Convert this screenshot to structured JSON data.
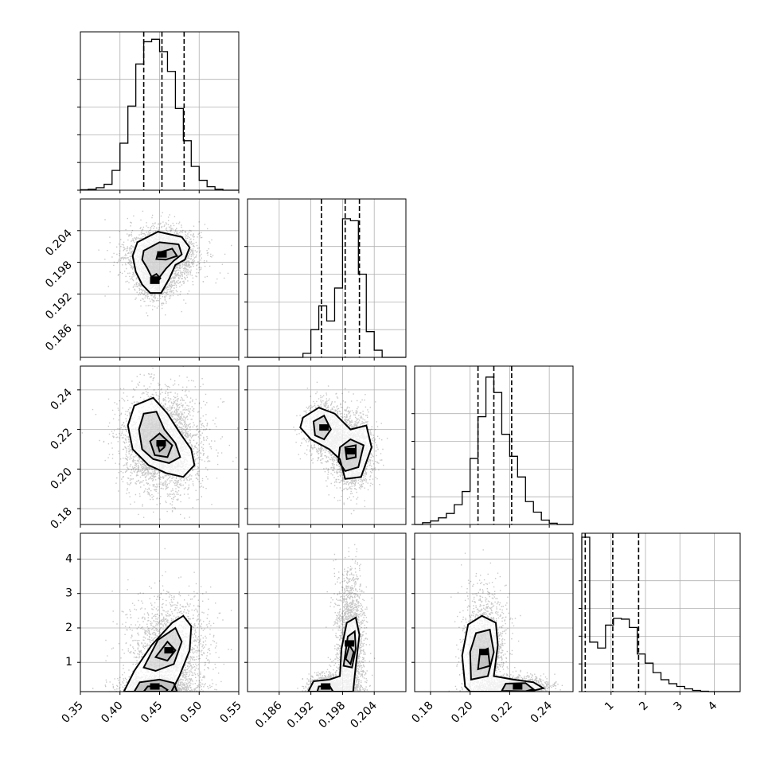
{
  "chart_data": {
    "type": "corner",
    "n_params": 4,
    "grid": true,
    "colors": {
      "line": "#000000",
      "grid": "#b0b0b0",
      "scatter": "#000000"
    },
    "axes": [
      {
        "range": [
          0.35,
          0.55
        ],
        "ticks": [
          0.35,
          0.4,
          0.45,
          0.5,
          0.55
        ],
        "labels": [
          "0.35",
          "0.40",
          "0.45",
          "0.50",
          "0.55"
        ]
      },
      {
        "range": [
          0.18,
          0.21
        ],
        "ticks": [
          0.186,
          0.192,
          0.198,
          0.204
        ],
        "labels": [
          "0.186",
          "0.192",
          "0.198",
          "0.204"
        ]
      },
      {
        "range": [
          0.172,
          0.252
        ],
        "ticks": [
          0.18,
          0.2,
          0.22,
          0.24
        ],
        "labels": [
          "0.18",
          "0.20",
          "0.22",
          "0.24"
        ]
      },
      {
        "range": [
          0.15,
          4.75
        ],
        "ticks": [
          1,
          2,
          3,
          4
        ],
        "labels": [
          "1",
          "2",
          "3",
          "4"
        ]
      }
    ],
    "histograms": [
      {
        "param": 0,
        "edges": [
          0.35,
          0.36,
          0.37,
          0.38,
          0.39,
          0.4,
          0.41,
          0.42,
          0.43,
          0.44,
          0.45,
          0.46,
          0.47,
          0.48,
          0.49,
          0.5,
          0.51,
          0.52,
          0.53,
          0.54,
          0.55
        ],
        "counts": [
          1,
          2,
          5,
          12,
          40,
          95,
          170,
          255,
          300,
          305,
          280,
          240,
          165,
          100,
          48,
          20,
          7,
          2,
          0,
          0
        ],
        "quantiles": [
          0.43,
          0.453,
          0.481
        ],
        "max": 320
      },
      {
        "param": 1,
        "edges": [
          0.18,
          0.1815,
          0.183,
          0.1845,
          0.186,
          0.1875,
          0.189,
          0.1905,
          0.192,
          0.1935,
          0.195,
          0.1965,
          0.198,
          0.1995,
          0.201,
          0.2025,
          0.204,
          0.2055,
          0.207,
          0.2085,
          0.21
        ],
        "counts": [
          0,
          0,
          0,
          0,
          0,
          0,
          0,
          10,
          70,
          130,
          92,
          175,
          350,
          345,
          210,
          65,
          18,
          0,
          0,
          0
        ],
        "quantiles": [
          0.194,
          0.1985,
          0.2012
        ],
        "max": 400
      },
      {
        "param": 2,
        "edges": [
          0.172,
          0.176,
          0.18,
          0.184,
          0.188,
          0.192,
          0.196,
          0.2,
          0.204,
          0.208,
          0.212,
          0.216,
          0.22,
          0.224,
          0.228,
          0.232,
          0.236,
          0.24,
          0.244,
          0.248,
          0.252
        ],
        "counts": [
          0,
          4,
          8,
          15,
          25,
          45,
          75,
          150,
          245,
          335,
          300,
          205,
          155,
          108,
          52,
          28,
          10,
          3,
          0,
          0
        ],
        "quantiles": [
          0.204,
          0.212,
          0.221
        ],
        "max": 360
      },
      {
        "param": 3,
        "edges": [
          0.15,
          0.38,
          0.61,
          0.84,
          1.07,
          1.3,
          1.53,
          1.76,
          1.99,
          2.22,
          2.45,
          2.68,
          2.91,
          3.14,
          3.37,
          3.6,
          3.83,
          4.06,
          4.29,
          4.52,
          4.75
        ],
        "counts": [
          390,
          125,
          110,
          168,
          185,
          183,
          162,
          95,
          72,
          48,
          30,
          20,
          13,
          7,
          3,
          1,
          0,
          0,
          0,
          0
        ],
        "quantiles": [
          0.25,
          1.05,
          1.8
        ],
        "max": 400
      }
    ],
    "pairs": [
      {
        "x": 0,
        "y": 1,
        "modes": [
          {
            "cx": 0.453,
            "cy": 0.1995,
            "sx": 0.02,
            "sy": 0.0022,
            "w": 0.75
          },
          {
            "cx": 0.444,
            "cy": 0.1945,
            "sx": 0.012,
            "sy": 0.0016,
            "w": 0.25
          }
        ],
        "contours": [
          [
            [
              0.422,
              0.2018
            ],
            [
              0.448,
              0.2038
            ],
            [
              0.478,
              0.2028
            ],
            [
              0.488,
              0.2008
            ],
            [
              0.482,
              0.1985
            ],
            [
              0.47,
              0.1975
            ],
            [
              0.462,
              0.1948
            ],
            [
              0.452,
              0.1922
            ],
            [
              0.438,
              0.1922
            ],
            [
              0.428,
              0.1938
            ],
            [
              0.42,
              0.1962
            ],
            [
              0.416,
              0.1992
            ]
          ],
          [
            [
              0.43,
              0.2002
            ],
            [
              0.45,
              0.2018
            ],
            [
              0.474,
              0.2014
            ],
            [
              0.478,
              0.1995
            ],
            [
              0.468,
              0.1983
            ],
            [
              0.458,
              0.1968
            ],
            [
              0.45,
              0.1952
            ],
            [
              0.44,
              0.1952
            ],
            [
              0.434,
              0.197
            ],
            [
              0.428,
              0.1985
            ]
          ],
          [
            [
              0.448,
              0.1998
            ],
            [
              0.466,
              0.2006
            ],
            [
              0.472,
              0.1992
            ],
            [
              0.458,
              0.1985
            ],
            [
              0.446,
              0.1986
            ]
          ],
          [
            [
              0.439,
              0.1952
            ],
            [
              0.446,
              0.1958
            ],
            [
              0.451,
              0.195
            ],
            [
              0.446,
              0.1941
            ],
            [
              0.439,
              0.1944
            ]
          ]
        ]
      },
      {
        "x": 0,
        "y": 2,
        "modes": [
          {
            "cx": 0.452,
            "cy": 0.213,
            "sx": 0.022,
            "sy": 0.011,
            "w": 1.0
          }
        ],
        "contours": [
          [
            [
              0.418,
              0.232
            ],
            [
              0.442,
              0.236
            ],
            [
              0.46,
              0.228
            ],
            [
              0.476,
              0.218
            ],
            [
              0.49,
              0.21
            ],
            [
              0.494,
              0.202
            ],
            [
              0.48,
              0.196
            ],
            [
              0.458,
              0.198
            ],
            [
              0.436,
              0.202
            ],
            [
              0.416,
              0.21
            ],
            [
              0.41,
              0.222
            ]
          ],
          [
            [
              0.43,
              0.228
            ],
            [
              0.446,
              0.229
            ],
            [
              0.456,
              0.22
            ],
            [
              0.47,
              0.213
            ],
            [
              0.476,
              0.206
            ],
            [
              0.462,
              0.203
            ],
            [
              0.442,
              0.205
            ],
            [
              0.428,
              0.21
            ],
            [
              0.424,
              0.22
            ]
          ],
          [
            [
              0.438,
              0.214
            ],
            [
              0.45,
              0.218
            ],
            [
              0.466,
              0.212
            ],
            [
              0.46,
              0.206
            ],
            [
              0.444,
              0.207
            ]
          ],
          [
            [
              0.447,
              0.213
            ],
            [
              0.454,
              0.214
            ],
            [
              0.456,
              0.211
            ],
            [
              0.45,
              0.209
            ]
          ]
        ]
      },
      {
        "x": 1,
        "y": 2,
        "modes": [
          {
            "cx": 0.1995,
            "cy": 0.209,
            "sx": 0.0018,
            "sy": 0.008,
            "w": 0.65
          },
          {
            "cx": 0.1945,
            "cy": 0.221,
            "sx": 0.0017,
            "sy": 0.006,
            "w": 0.35
          }
        ],
        "contours": [
          [
            [
              0.1905,
              0.226
            ],
            [
              0.1935,
              0.231
            ],
            [
              0.1965,
              0.228
            ],
            [
              0.1995,
              0.22
            ],
            [
              0.2025,
              0.222
            ],
            [
              0.2035,
              0.211
            ],
            [
              0.2015,
              0.196
            ],
            [
              0.1985,
              0.195
            ],
            [
              0.1975,
              0.205
            ],
            [
              0.1955,
              0.21
            ],
            [
              0.192,
              0.215
            ],
            [
              0.19,
              0.221
            ]
          ],
          [
            [
              0.1925,
              0.224
            ],
            [
              0.1945,
              0.227
            ],
            [
              0.1958,
              0.22
            ],
            [
              0.1945,
              0.215
            ],
            [
              0.1928,
              0.217
            ]
          ],
          [
            [
              0.1975,
              0.211
            ],
            [
              0.1995,
              0.215
            ],
            [
              0.202,
              0.212
            ],
            [
              0.201,
              0.201
            ],
            [
              0.1985,
              0.199
            ],
            [
              0.1972,
              0.204
            ]
          ],
          [
            [
              0.1985,
              0.211
            ],
            [
              0.2005,
              0.212
            ],
            [
              0.2005,
              0.206
            ],
            [
              0.1988,
              0.205
            ]
          ]
        ]
      },
      {
        "x": 0,
        "y": 3,
        "modes": [
          {
            "cx": 0.462,
            "cy": 1.35,
            "sx": 0.022,
            "sy": 0.7,
            "w": 0.6
          },
          {
            "cx": 0.444,
            "cy": 0.3,
            "sx": 0.018,
            "sy": 0.15,
            "w": 0.4
          }
        ],
        "contours": [
          [
            [
              0.405,
              0.15
            ],
            [
              0.418,
              0.75
            ],
            [
              0.44,
              1.5
            ],
            [
              0.466,
              2.15
            ],
            [
              0.48,
              2.35
            ],
            [
              0.49,
              2.05
            ],
            [
              0.488,
              1.35
            ],
            [
              0.475,
              0.6
            ],
            [
              0.465,
              0.15
            ]
          ],
          [
            [
              0.43,
              0.85
            ],
            [
              0.448,
              1.65
            ],
            [
              0.47,
              2.0
            ],
            [
              0.478,
              1.6
            ],
            [
              0.468,
              0.95
            ],
            [
              0.445,
              0.75
            ]
          ],
          [
            [
              0.445,
              1.15
            ],
            [
              0.46,
              1.6
            ],
            [
              0.47,
              1.35
            ],
            [
              0.46,
              1.05
            ]
          ],
          [
            [
              0.418,
              0.15
            ],
            [
              0.425,
              0.42
            ],
            [
              0.45,
              0.5
            ],
            [
              0.468,
              0.4
            ],
            [
              0.472,
              0.15
            ]
          ],
          [
            [
              0.43,
              0.15
            ],
            [
              0.435,
              0.3
            ],
            [
              0.452,
              0.32
            ],
            [
              0.46,
              0.2
            ],
            [
              0.458,
              0.15
            ]
          ]
        ]
      },
      {
        "x": 1,
        "y": 3,
        "modes": [
          {
            "cx": 0.1993,
            "cy": 1.55,
            "sx": 0.0012,
            "sy": 0.9,
            "w": 0.6
          },
          {
            "cx": 0.1948,
            "cy": 0.3,
            "sx": 0.0014,
            "sy": 0.15,
            "w": 0.4
          }
        ],
        "contours": [
          [
            [
              0.1915,
              0.15
            ],
            [
              0.1925,
              0.45
            ],
            [
              0.1955,
              0.5
            ],
            [
              0.1975,
              0.6
            ],
            [
              0.1978,
              1.4
            ],
            [
              0.1988,
              2.15
            ],
            [
              0.2005,
              2.3
            ],
            [
              0.2012,
              1.8
            ],
            [
              0.2005,
              0.9
            ],
            [
              0.2,
              0.15
            ]
          ],
          [
            [
              0.1982,
              0.9
            ],
            [
              0.199,
              1.75
            ],
            [
              0.2003,
              1.9
            ],
            [
              0.2005,
              1.4
            ],
            [
              0.1998,
              0.85
            ]
          ],
          [
            [
              0.1986,
              1.1
            ],
            [
              0.1993,
              1.5
            ],
            [
              0.2001,
              1.3
            ],
            [
              0.1995,
              0.95
            ]
          ],
          [
            [
              0.1932,
              0.15
            ],
            [
              0.1935,
              0.3
            ],
            [
              0.1955,
              0.33
            ],
            [
              0.1962,
              0.15
            ]
          ]
        ]
      },
      {
        "x": 2,
        "y": 3,
        "modes": [
          {
            "cx": 0.207,
            "cy": 1.3,
            "sx": 0.005,
            "sy": 0.8,
            "w": 0.5
          },
          {
            "cx": 0.224,
            "cy": 0.3,
            "sx": 0.006,
            "sy": 0.12,
            "w": 0.5
          }
        ],
        "contours": [
          [
            [
              0.1975,
              0.3
            ],
            [
              0.196,
              1.2
            ],
            [
              0.199,
              2.1
            ],
            [
              0.206,
              2.35
            ],
            [
              0.213,
              2.15
            ],
            [
              0.214,
              1.5
            ],
            [
              0.212,
              0.6
            ],
            [
              0.222,
              0.5
            ],
            [
              0.232,
              0.42
            ],
            [
              0.237,
              0.25
            ],
            [
              0.23,
              0.15
            ],
            [
              0.212,
              0.15
            ],
            [
              0.2,
              0.15
            ]
          ],
          [
            [
              0.2005,
              0.5
            ],
            [
              0.2,
              1.3
            ],
            [
              0.203,
              1.85
            ],
            [
              0.21,
              1.95
            ],
            [
              0.212,
              1.3
            ],
            [
              0.209,
              0.6
            ]
          ],
          [
            [
              0.204,
              0.8
            ],
            [
              0.205,
              1.3
            ],
            [
              0.209,
              1.4
            ],
            [
              0.21,
              0.9
            ]
          ],
          [
            [
              0.216,
              0.17
            ],
            [
              0.218,
              0.38
            ],
            [
              0.228,
              0.4
            ],
            [
              0.232,
              0.22
            ],
            [
              0.228,
              0.16
            ]
          ]
        ]
      }
    ]
  }
}
